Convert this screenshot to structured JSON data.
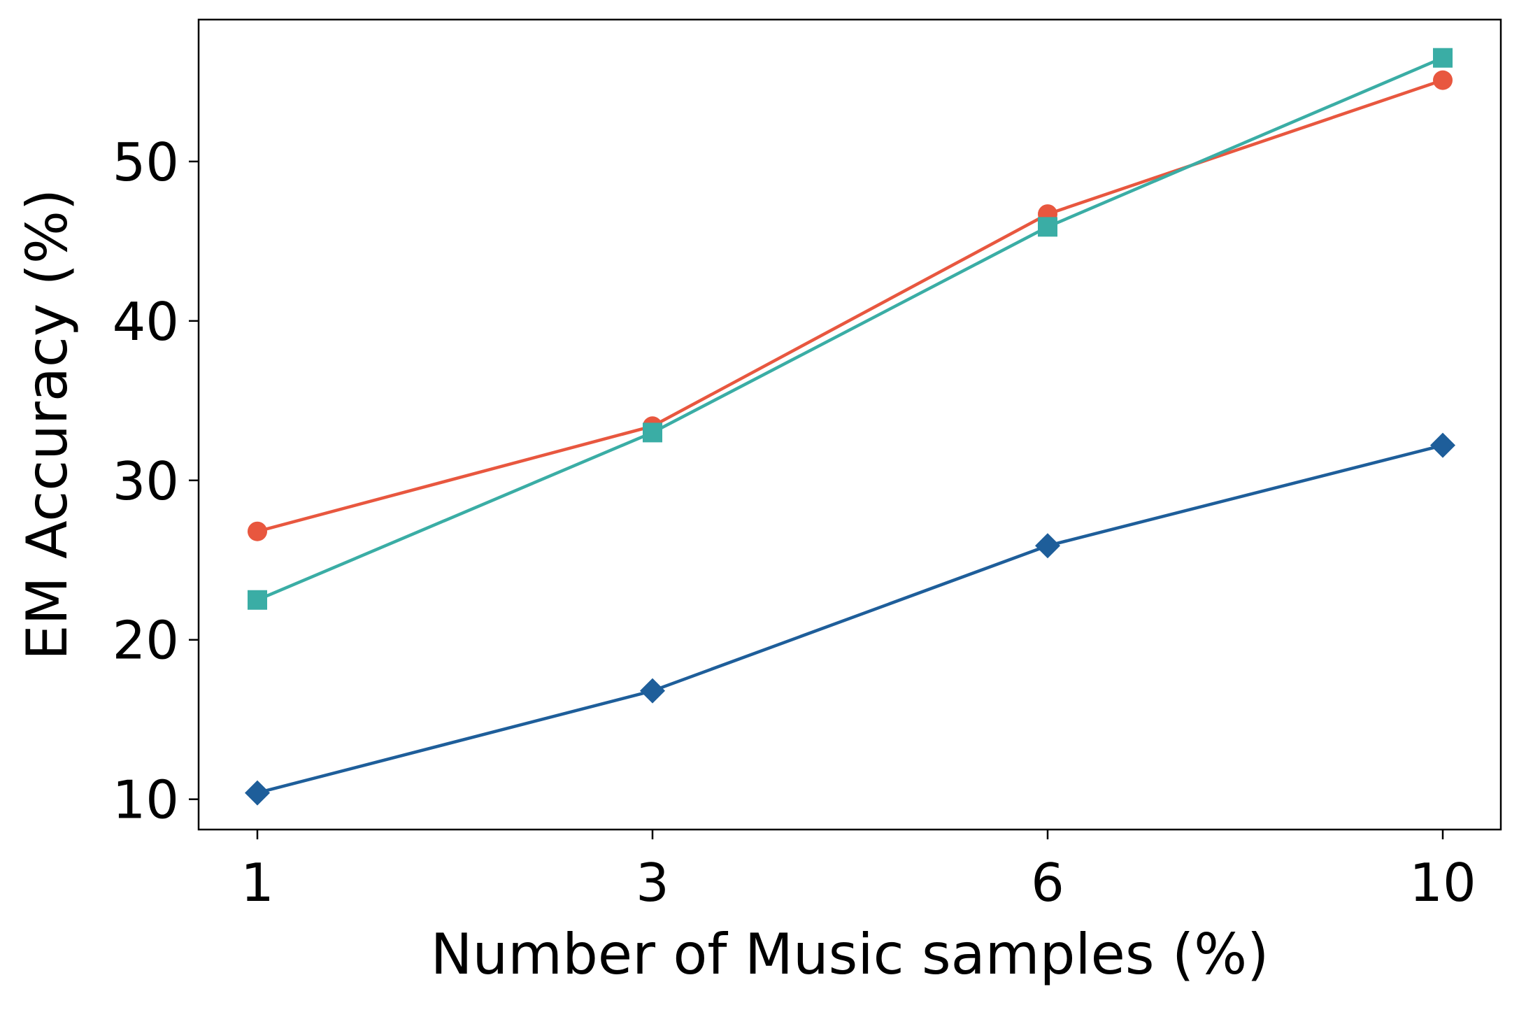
{
  "chart_data": {
    "type": "line",
    "title": "",
    "xlabel": "Number of Music samples (%)",
    "ylabel": "EM Accuracy (%)",
    "x_categories": [
      "1",
      "3",
      "6",
      "10"
    ],
    "yticks": [
      10,
      20,
      30,
      40,
      50
    ],
    "ylim": [
      8.1,
      58.9
    ],
    "grid": false,
    "legend": "none",
    "series": [
      {
        "color": "#E8573F",
        "marker": "circle",
        "values": [
          26.8,
          33.4,
          46.7,
          55.1
        ]
      },
      {
        "color": "#3AADA5",
        "marker": "square",
        "values": [
          22.5,
          33.0,
          45.9,
          56.5
        ]
      },
      {
        "color": "#1E5E9A",
        "marker": "diamond",
        "values": [
          10.4,
          16.8,
          25.9,
          32.2
        ]
      }
    ]
  }
}
